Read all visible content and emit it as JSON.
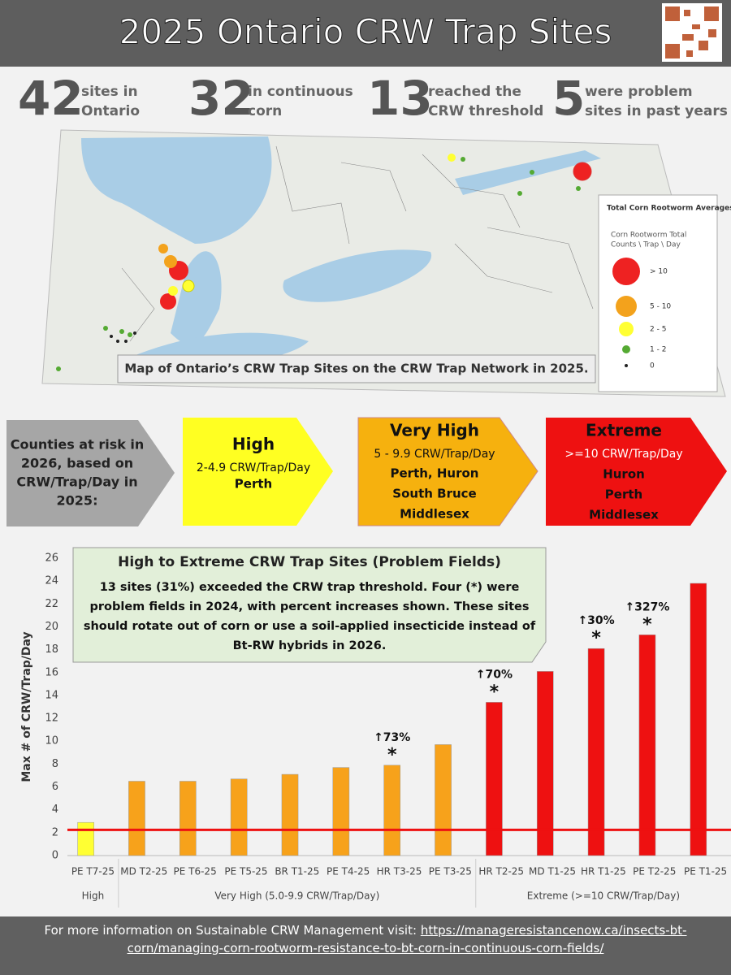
{
  "header": {
    "title": "2025 Ontario CRW Trap Sites"
  },
  "stats": [
    {
      "number": 42,
      "lines": [
        "sites in",
        "Ontario"
      ]
    },
    {
      "number": 32,
      "lines": [
        "in continuous",
        "corn"
      ]
    },
    {
      "number": 13,
      "lines": [
        "reached the",
        "CRW threshold"
      ]
    },
    {
      "number": 5,
      "lines": [
        "were problem",
        "sites in past years"
      ]
    }
  ],
  "map": {
    "caption": "Map of Ontario’s CRW Trap Sites on the CRW Trap Network in 2025.",
    "legend": {
      "title": "Total Corn Rootworm Averages",
      "subtitle": [
        "Corn Rootworm Total",
        "Counts \\ Trap \\ Day"
      ],
      "items": [
        "> 10",
        "5 - 10",
        "2 - 5",
        "1 - 2",
        "0"
      ]
    }
  },
  "risk": {
    "intro": [
      "Counties at risk in",
      "2026, based on",
      "CRW/Trap/Day in",
      "2025:"
    ],
    "levels": [
      {
        "name": "High",
        "range": "2-4.9 CRW/Trap/Day",
        "counties": [
          "Perth"
        ]
      },
      {
        "name": "Very High",
        "range": "5 - 9.9 CRW/Trap/Day",
        "counties": [
          "Perth, Huron",
          "South Bruce",
          "Middlesex"
        ]
      },
      {
        "name": "Extreme",
        "range": ">=10 CRW/Trap/Day",
        "counties": [
          "Huron",
          "Perth",
          "Middlesex"
        ]
      }
    ]
  },
  "chart_data": {
    "type": "bar",
    "callout": {
      "title": "High to Extreme CRW Trap Sites (Problem Fields)",
      "lines": [
        "13 sites (31%) exceeded the CRW trap threshold. Four (*) were",
        "problem fields in 2024, with percent increases shown. These sites",
        "should rotate out of corn or use a soil-applied insecticide instead of",
        "Bt-RW hybrids in 2026."
      ]
    },
    "ylabel": "Max # of CRW/Trap/Day",
    "categories": [
      "PE T7-25",
      "MD T2-25",
      "PE T6-25",
      "PE T5-25",
      "BR T1-25",
      "PE T4-25",
      "HR T3-25",
      "PE T3-25",
      "HR T2-25",
      "MD T1-25",
      "HR T1-25",
      "PE T2-25",
      "PE T1-25"
    ],
    "category_groups": [
      "High",
      "Very High   (5.0-9.9 CRW/Trap/Day)",
      "Very High   (5.0-9.9 CRW/Trap/Day)",
      "Very High   (5.0-9.9 CRW/Trap/Day)",
      "Very High   (5.0-9.9 CRW/Trap/Day)",
      "Very High   (5.0-9.9 CRW/Trap/Day)",
      "Very High   (5.0-9.9 CRW/Trap/Day)",
      "Very High   (5.0-9.9 CRW/Trap/Day)",
      "Extreme   (>=10 CRW/Trap/Day)",
      "Extreme   (>=10 CRW/Trap/Day)",
      "Extreme   (>=10 CRW/Trap/Day)",
      "Extreme   (>=10 CRW/Trap/Day)",
      "Extreme   (>=10 CRW/Trap/Day)"
    ],
    "values": [
      2.9,
      6.5,
      6.5,
      6.7,
      7.1,
      7.7,
      7.9,
      9.7,
      13.4,
      16.1,
      18.1,
      19.3,
      23.8
    ],
    "colors": [
      "#ffff33",
      "#f7a21b",
      "#f7a21b",
      "#f7a21b",
      "#f7a21b",
      "#f7a21b",
      "#f7a21b",
      "#f7a21b",
      "#ee1111",
      "#ee1111",
      "#ee1111",
      "#ee1111",
      "#ee1111"
    ],
    "increases": [
      null,
      null,
      null,
      null,
      null,
      null,
      "↑73%",
      null,
      "↑70%",
      null,
      "↑30%",
      "↑327%",
      null
    ],
    "markers": [
      null,
      null,
      null,
      null,
      null,
      null,
      "*",
      null,
      "*",
      null,
      "*",
      "*",
      null
    ],
    "threshold": 2.25,
    "threshold_color": "#ee1111",
    "ylim": [
      0,
      26
    ],
    "yticks": [
      0,
      2,
      4,
      6,
      8,
      10,
      12,
      14,
      16,
      18,
      20,
      22,
      24,
      26
    ]
  },
  "footer": {
    "text": "For more information on Sustainable CRW Management visit:",
    "link": "https://manageresistancenow.ca/insects-bt-corn/managing-corn-rootworm-resistance-to-bt-corn-in-continuous-corn-fields/"
  }
}
